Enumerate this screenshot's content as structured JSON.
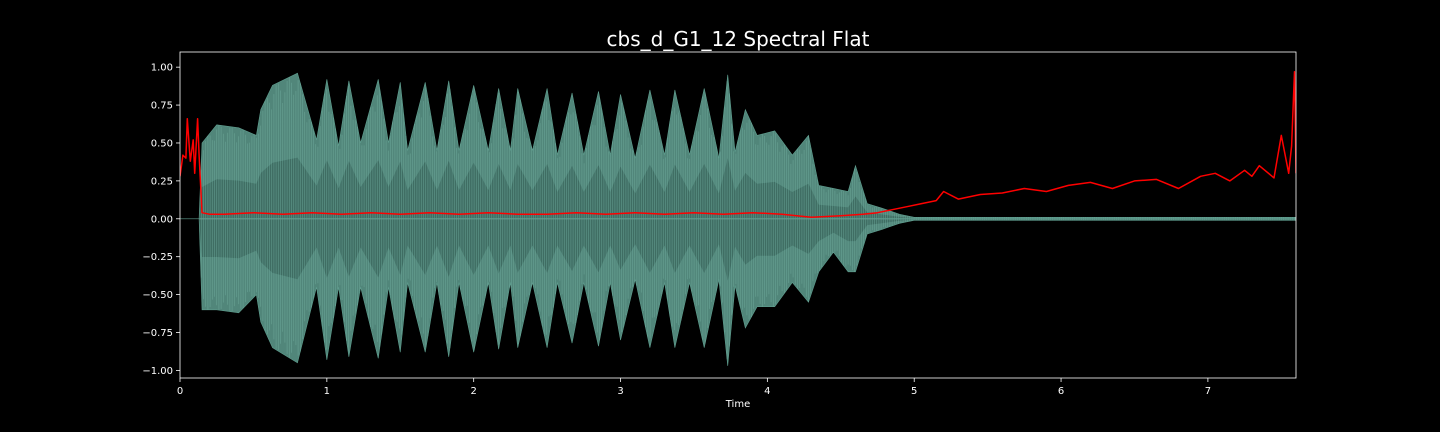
{
  "chart_data": {
    "type": "line",
    "title": "cbs_d_G1_12 Spectral Flat",
    "xlabel": "Time",
    "ylabel": "",
    "xlim": [
      0,
      7.6
    ],
    "ylim": [
      -1.05,
      1.1
    ],
    "x_ticks": [
      0,
      1,
      2,
      3,
      4,
      5,
      6,
      7
    ],
    "x_tick_labels": [
      "0",
      "1",
      "2",
      "3",
      "4",
      "5",
      "6",
      "7"
    ],
    "y_ticks": [
      1.0,
      0.75,
      0.5,
      0.25,
      0.0,
      -0.25,
      -0.5,
      -0.75,
      -1.0
    ],
    "y_tick_labels": [
      "1.00",
      "0.75",
      "0.50",
      "0.25",
      "0.00",
      "−0.25",
      "−0.50",
      "−0.75",
      "−1.00"
    ],
    "grid": false,
    "legend": "none",
    "series": [
      {
        "kind": "waveform",
        "color": "#5f9e8f",
        "envelope": {
          "x": [
            0.0,
            0.13,
            0.15,
            0.25,
            0.4,
            0.52,
            0.55,
            0.63,
            0.8,
            0.93,
            1.0,
            1.08,
            1.15,
            1.23,
            1.35,
            1.42,
            1.5,
            1.55,
            1.67,
            1.75,
            1.83,
            1.9,
            2.0,
            2.1,
            2.17,
            2.25,
            2.3,
            2.4,
            2.5,
            2.57,
            2.67,
            2.75,
            2.85,
            2.93,
            3.0,
            3.1,
            3.2,
            3.3,
            3.37,
            3.47,
            3.57,
            3.67,
            3.73,
            3.78,
            3.85,
            3.93,
            4.05,
            4.17,
            4.28,
            4.35,
            4.45,
            4.55,
            4.6,
            4.68,
            4.78,
            4.9,
            5.0,
            7.6
          ],
          "peak": [
            0.0,
            0.0,
            0.5,
            0.62,
            0.6,
            0.55,
            0.72,
            0.88,
            0.96,
            0.52,
            0.92,
            0.48,
            0.91,
            0.5,
            0.92,
            0.5,
            0.9,
            0.45,
            0.9,
            0.45,
            0.91,
            0.45,
            0.88,
            0.45,
            0.86,
            0.45,
            0.86,
            0.45,
            0.86,
            0.42,
            0.83,
            0.42,
            0.84,
            0.42,
            0.82,
            0.4,
            0.85,
            0.42,
            0.85,
            0.42,
            0.86,
            0.4,
            0.95,
            0.44,
            0.72,
            0.55,
            0.58,
            0.42,
            0.55,
            0.22,
            0.2,
            0.18,
            0.35,
            0.1,
            0.07,
            0.03,
            0.01,
            0.01
          ],
          "trough": [
            0.0,
            0.0,
            -0.6,
            -0.6,
            -0.62,
            -0.5,
            -0.68,
            -0.85,
            -0.95,
            -0.45,
            -0.93,
            -0.45,
            -0.91,
            -0.45,
            -0.92,
            -0.45,
            -0.88,
            -0.42,
            -0.88,
            -0.42,
            -0.91,
            -0.42,
            -0.88,
            -0.42,
            -0.86,
            -0.42,
            -0.85,
            -0.42,
            -0.85,
            -0.42,
            -0.82,
            -0.42,
            -0.84,
            -0.42,
            -0.8,
            -0.4,
            -0.85,
            -0.42,
            -0.85,
            -0.42,
            -0.85,
            -0.4,
            -0.97,
            -0.44,
            -0.72,
            -0.58,
            -0.58,
            -0.42,
            -0.55,
            -0.35,
            -0.22,
            -0.35,
            -0.35,
            -0.1,
            -0.07,
            -0.03,
            -0.01,
            -0.01
          ]
        }
      },
      {
        "kind": "spectral_flatness",
        "color": "#ff0000",
        "x": [
          0.0,
          0.02,
          0.04,
          0.05,
          0.07,
          0.09,
          0.1,
          0.12,
          0.13,
          0.15,
          0.2,
          0.3,
          0.5,
          0.7,
          0.9,
          1.1,
          1.3,
          1.5,
          1.7,
          1.9,
          2.1,
          2.3,
          2.5,
          2.7,
          2.9,
          3.1,
          3.3,
          3.5,
          3.7,
          3.9,
          4.1,
          4.2,
          4.3,
          4.5,
          4.65,
          4.75,
          4.85,
          4.95,
          5.05,
          5.15,
          5.2,
          5.3,
          5.45,
          5.6,
          5.75,
          5.9,
          6.05,
          6.2,
          6.35,
          6.5,
          6.65,
          6.8,
          6.95,
          7.05,
          7.15,
          7.25,
          7.3,
          7.35,
          7.45,
          7.5,
          7.55,
          7.57,
          7.59,
          7.6
        ],
        "y": [
          0.28,
          0.42,
          0.4,
          0.66,
          0.38,
          0.52,
          0.3,
          0.66,
          0.42,
          0.04,
          0.03,
          0.03,
          0.04,
          0.03,
          0.04,
          0.03,
          0.04,
          0.03,
          0.04,
          0.03,
          0.04,
          0.03,
          0.03,
          0.04,
          0.03,
          0.04,
          0.03,
          0.04,
          0.03,
          0.04,
          0.03,
          0.02,
          0.01,
          0.02,
          0.03,
          0.04,
          0.06,
          0.08,
          0.1,
          0.12,
          0.18,
          0.13,
          0.16,
          0.17,
          0.2,
          0.18,
          0.22,
          0.24,
          0.2,
          0.25,
          0.26,
          0.2,
          0.28,
          0.3,
          0.25,
          0.32,
          0.28,
          0.35,
          0.27,
          0.55,
          0.3,
          0.48,
          0.97,
          0.3
        ]
      }
    ]
  }
}
